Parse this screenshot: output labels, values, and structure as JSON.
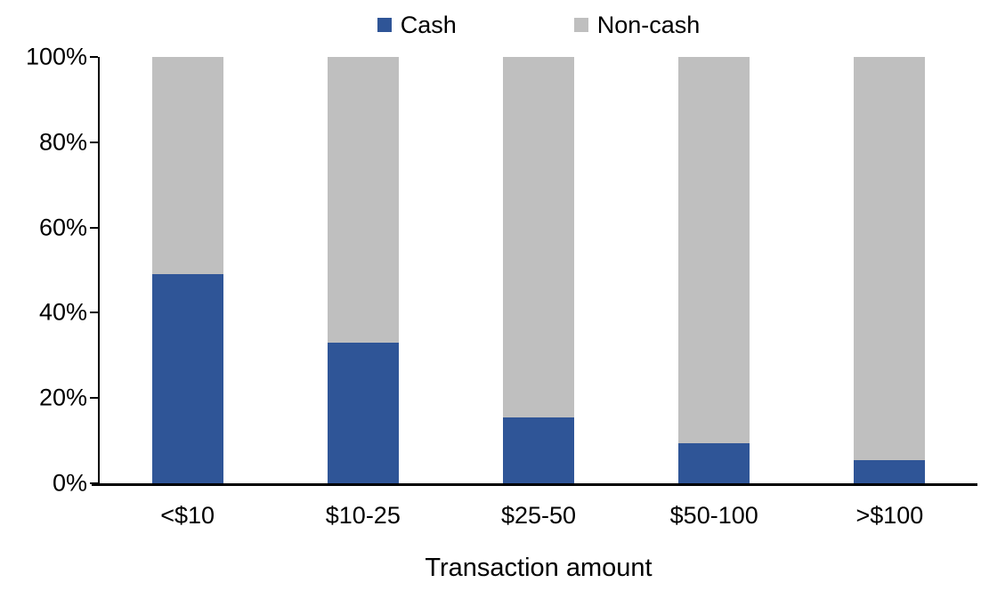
{
  "chart_data": {
    "type": "bar",
    "stacked": true,
    "title": "",
    "xlabel": "Transaction amount",
    "ylabel": "",
    "categories": [
      "<$10",
      "$10-25",
      "$25-50",
      "$50-100",
      ">$100"
    ],
    "series": [
      {
        "name": "Cash",
        "color": "#2F5597",
        "values": [
          49,
          33,
          15.5,
          9.5,
          5.5
        ]
      },
      {
        "name": "Non-cash",
        "color": "#BFBFBF",
        "values": [
          51,
          67,
          84.5,
          90.5,
          94.5
        ]
      }
    ],
    "ylim": [
      0,
      100
    ],
    "yticks": [
      0,
      20,
      40,
      60,
      80,
      100
    ],
    "ytick_labels": [
      "0%",
      "20%",
      "40%",
      "60%",
      "80%",
      "100%"
    ],
    "legend_position": "top",
    "grid": false,
    "axis_color": "#000000",
    "background_color": "#FFFFFF"
  }
}
